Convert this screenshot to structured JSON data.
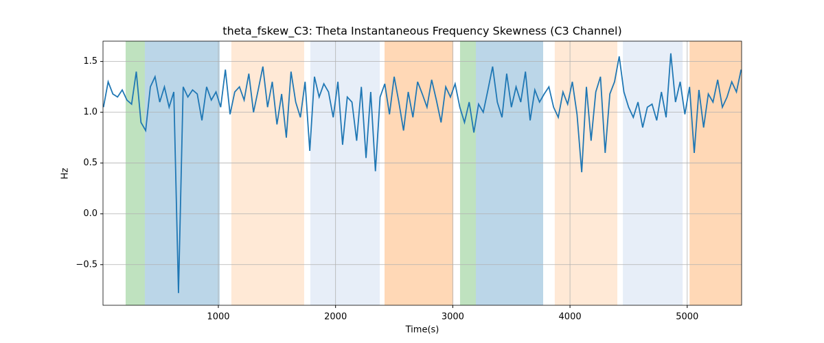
{
  "chart_data": {
    "type": "line",
    "title": "theta_fskew_C3: Theta Instantaneous Frequency Skewness (C3 Channel)",
    "x_label": "Time(s)",
    "y_label": "Hz",
    "xlim": [
      16,
      5464
    ],
    "ylim": [
      -0.9,
      1.7
    ],
    "xticks": [
      1000,
      2000,
      3000,
      4000,
      5000
    ],
    "yticks": [
      {
        "value": -0.5,
        "label": "−0.5"
      },
      {
        "value": 0,
        "label": "0.0"
      },
      0.5,
      {
        "value": 1,
        "label": "1.0"
      },
      1.5
    ],
    "grid": true,
    "spans": [
      {
        "x0": 209,
        "x1": 373,
        "color": "#2ca02c",
        "opacity": 0.3
      },
      {
        "x0": 373,
        "x1": 1011,
        "color": "#1f77b4",
        "opacity": 0.3
      },
      {
        "x0": 1111,
        "x1": 1732,
        "color": "#ff7f0e",
        "opacity": 0.17
      },
      {
        "x0": 1785,
        "x1": 2377,
        "color": "#aec7e8",
        "opacity": 0.3
      },
      {
        "x0": 2418,
        "x1": 3004,
        "color": "#ff7f0e",
        "opacity": 0.3
      },
      {
        "x0": 3062,
        "x1": 3197,
        "color": "#2ca02c",
        "opacity": 0.3
      },
      {
        "x0": 3197,
        "x1": 3771,
        "color": "#1f77b4",
        "opacity": 0.3
      },
      {
        "x0": 3870,
        "x1": 4404,
        "color": "#ff7f0e",
        "opacity": 0.17
      },
      {
        "x0": 4451,
        "x1": 4961,
        "color": "#aec7e8",
        "opacity": 0.3
      },
      {
        "x0": 5020,
        "x1": 5464,
        "color": "#ff7f0e",
        "opacity": 0.3
      }
    ],
    "series": [
      {
        "color": "#1f77b4",
        "x": [
          20,
          60,
          100,
          140,
          180,
          220,
          260,
          300,
          340,
          380,
          420,
          460,
          500,
          540,
          580,
          620,
          660,
          700,
          740,
          780,
          820,
          860,
          900,
          940,
          980,
          1020,
          1060,
          1100,
          1140,
          1180,
          1220,
          1260,
          1300,
          1340,
          1380,
          1420,
          1460,
          1500,
          1540,
          1580,
          1620,
          1660,
          1700,
          1740,
          1780,
          1820,
          1860,
          1900,
          1940,
          1980,
          2020,
          2060,
          2100,
          2140,
          2180,
          2220,
          2260,
          2300,
          2340,
          2380,
          2420,
          2460,
          2500,
          2540,
          2580,
          2620,
          2660,
          2700,
          2740,
          2780,
          2820,
          2860,
          2900,
          2940,
          2980,
          3020,
          3060,
          3100,
          3140,
          3180,
          3220,
          3260,
          3300,
          3340,
          3380,
          3420,
          3460,
          3500,
          3540,
          3580,
          3620,
          3660,
          3700,
          3740,
          3780,
          3820,
          3860,
          3900,
          3940,
          3980,
          4020,
          4060,
          4100,
          4140,
          4180,
          4220,
          4260,
          4300,
          4340,
          4380,
          4420,
          4460,
          4500,
          4540,
          4580,
          4620,
          4660,
          4700,
          4740,
          4780,
          4820,
          4860,
          4900,
          4940,
          4980,
          5020,
          5060,
          5100,
          5140,
          5180,
          5220,
          5260,
          5300,
          5340,
          5380,
          5420,
          5460
        ],
        "values": [
          1.05,
          1.3,
          1.18,
          1.15,
          1.22,
          1.12,
          1.08,
          1.4,
          0.9,
          0.82,
          1.25,
          1.35,
          1.1,
          1.25,
          1.05,
          1.2,
          -0.78,
          1.25,
          1.15,
          1.22,
          1.18,
          0.92,
          1.25,
          1.12,
          1.2,
          1.05,
          1.42,
          0.98,
          1.2,
          1.25,
          1.12,
          1.38,
          1.0,
          1.22,
          1.45,
          1.05,
          1.3,
          0.88,
          1.18,
          0.75,
          1.4,
          1.1,
          0.95,
          1.3,
          0.62,
          1.35,
          1.15,
          1.28,
          1.2,
          0.95,
          1.3,
          0.68,
          1.15,
          1.1,
          0.72,
          1.25,
          0.55,
          1.2,
          0.42,
          1.15,
          1.28,
          0.98,
          1.35,
          1.1,
          0.82,
          1.2,
          0.95,
          1.3,
          1.18,
          1.05,
          1.32,
          1.12,
          0.9,
          1.25,
          1.15,
          1.28,
          1.05,
          0.9,
          1.1,
          0.8,
          1.08,
          1.0,
          1.22,
          1.45,
          1.1,
          0.95,
          1.38,
          1.05,
          1.25,
          1.1,
          1.4,
          0.92,
          1.22,
          1.1,
          1.18,
          1.25,
          1.05,
          0.95,
          1.2,
          1.08,
          1.3,
          0.98,
          0.41,
          1.25,
          0.72,
          1.2,
          1.35,
          0.6,
          1.18,
          1.3,
          1.55,
          1.2,
          1.05,
          0.95,
          1.1,
          0.85,
          1.05,
          1.08,
          0.92,
          1.2,
          0.95,
          1.58,
          1.1,
          1.3,
          0.98,
          1.25,
          0.6,
          1.22,
          0.85,
          1.18,
          1.1,
          1.32,
          1.05,
          1.15,
          1.3,
          1.2,
          1.42
        ]
      }
    ]
  }
}
